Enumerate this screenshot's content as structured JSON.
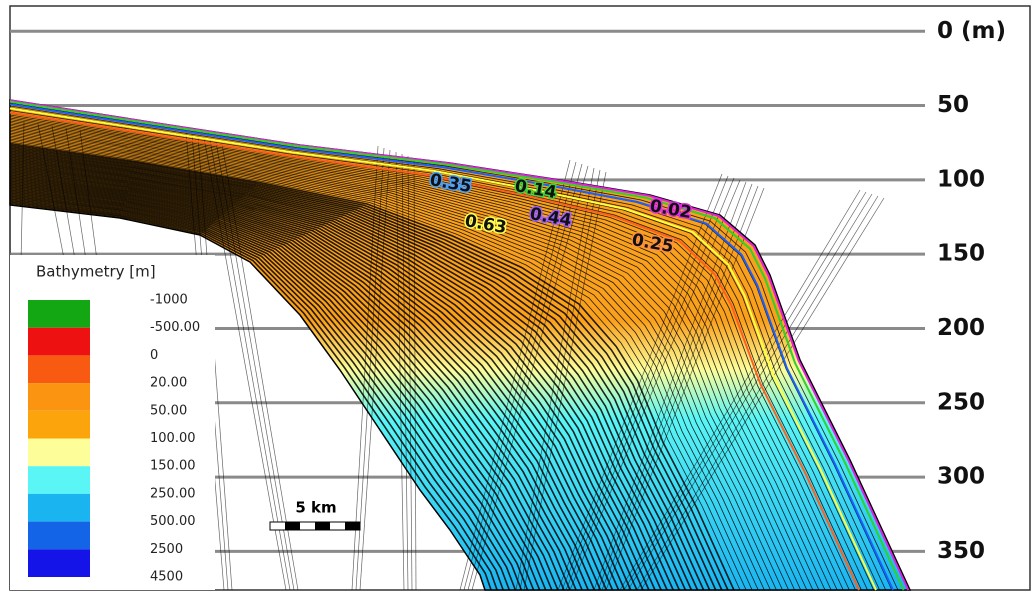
{
  "chart_data": {
    "type": "cross-section",
    "ylim": [
      -17,
      376
    ],
    "yticks": [
      {
        "value": 0,
        "label": "0  (m)"
      },
      50,
      100,
      150,
      200,
      250,
      300,
      350
    ],
    "grid": true,
    "legend": {
      "title": "Bathymetry [m]",
      "labels": [
        "-1000",
        "-500.00",
        "0",
        "20.00",
        "50.00",
        "100.00",
        "150.00",
        "250.00",
        "500.00",
        "2500",
        "4500"
      ],
      "colors": [
        "#13a813",
        "#ee1111",
        "#f75a10",
        "#fb9410",
        "#fba40c",
        "#fdfd9a",
        "#5af5f5",
        "#1ab4f0",
        "#1464e8",
        "#1414e8"
      ]
    },
    "annotations": [
      "0.35",
      "0.14",
      "0.02",
      "0.63",
      "0.44",
      "0.25"
    ],
    "scale_bar": "5 km"
  }
}
